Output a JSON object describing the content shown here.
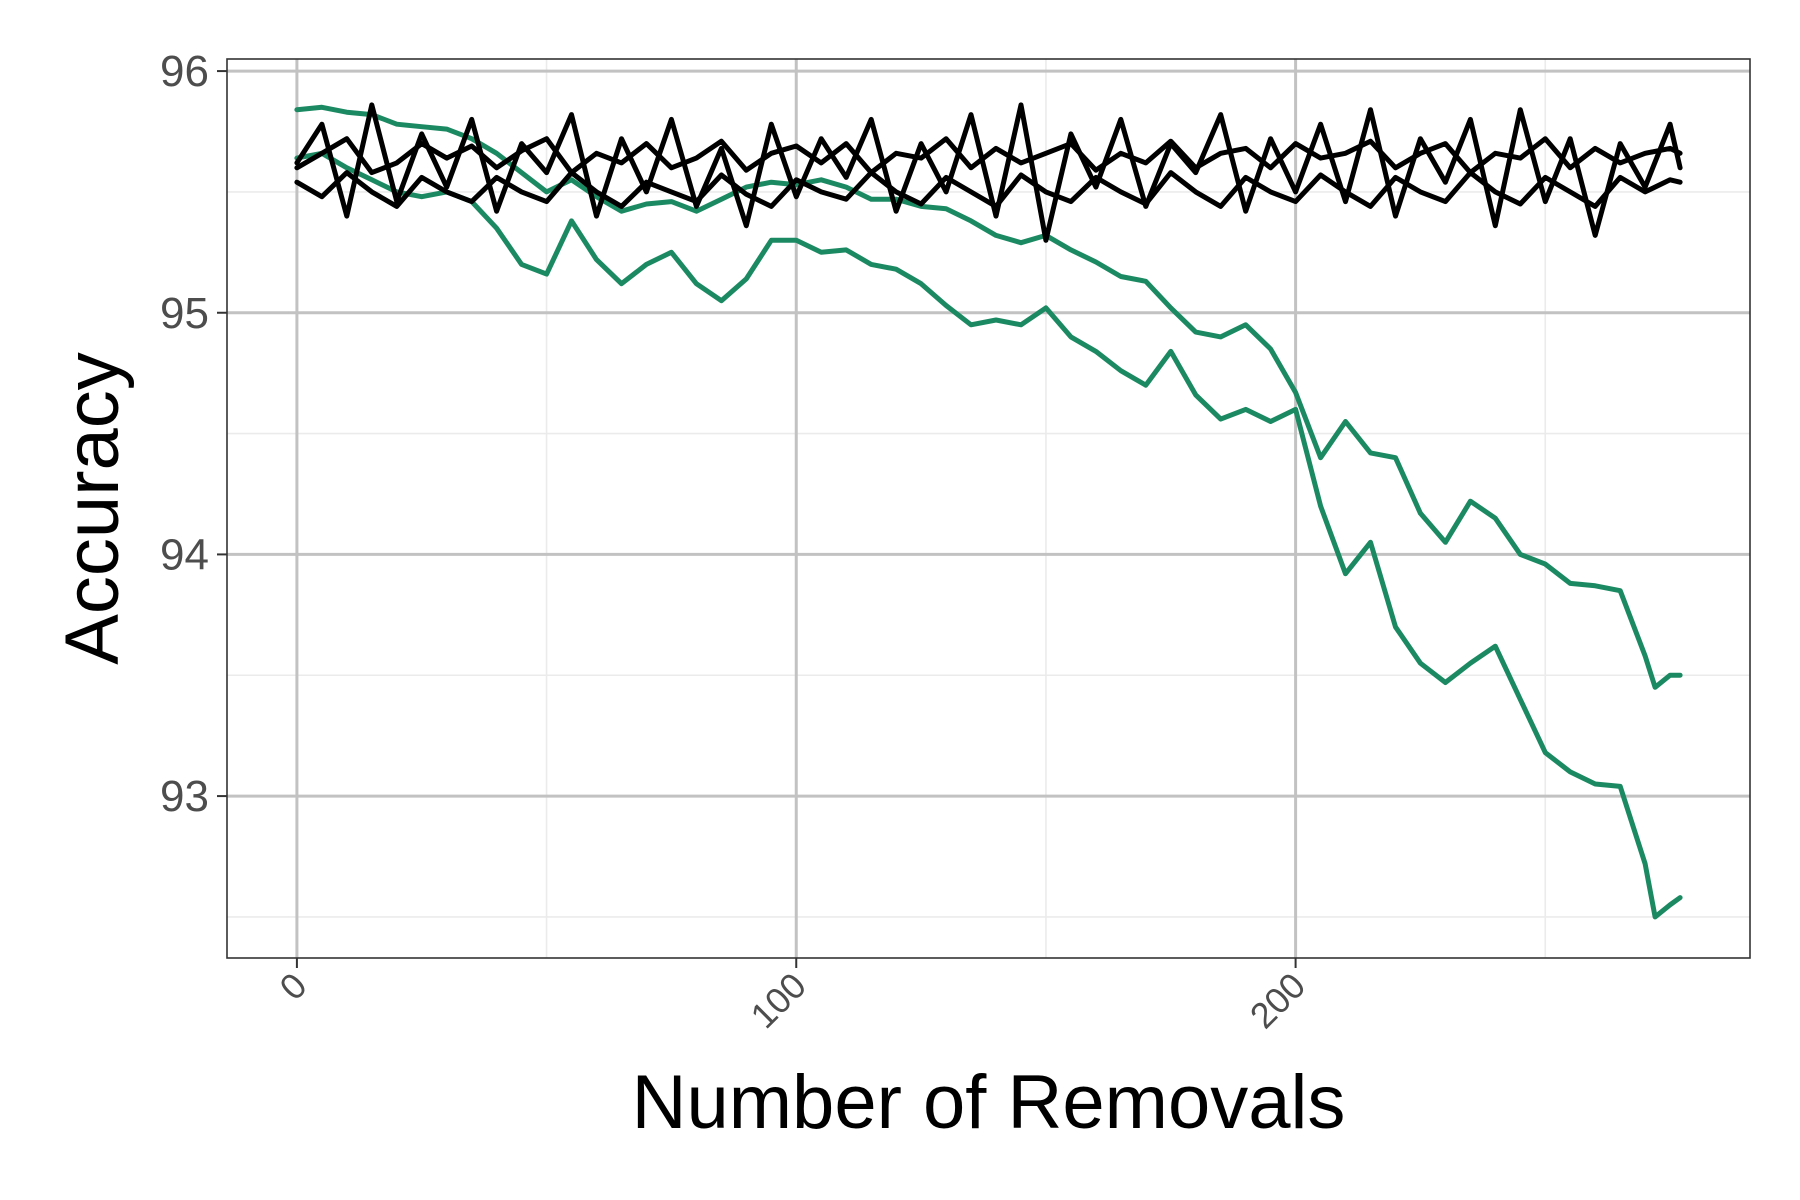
{
  "chart_data": {
    "type": "line",
    "xlabel": "Number of Removals",
    "ylabel": "Accuracy",
    "xlim": [
      -14,
      291
    ],
    "ylim": [
      92.33,
      96.05
    ],
    "x_ticks": [
      0,
      100,
      200
    ],
    "y_ticks": [
      93,
      94,
      95,
      96
    ],
    "grid": true,
    "legend": "none",
    "colors": {
      "green": "#1b8a63",
      "black": "#000000",
      "grid_major": "#c2c2c2",
      "grid_minor": "#ebebeb"
    },
    "series": [
      {
        "color": "#1b8a63",
        "x": [
          0,
          5,
          10,
          15,
          20,
          25,
          30,
          35,
          40,
          45,
          50,
          55,
          60,
          65,
          70,
          75,
          80,
          85,
          90,
          95,
          100,
          105,
          110,
          115,
          120,
          125,
          130,
          135,
          140,
          145,
          150,
          155,
          160,
          165,
          170,
          175,
          180,
          185,
          190,
          195,
          200,
          205,
          210,
          215,
          220,
          225,
          230,
          235,
          240,
          245,
          250,
          255,
          260,
          265,
          270,
          272,
          275,
          277
        ],
        "y": [
          95.84,
          95.85,
          95.83,
          95.82,
          95.78,
          95.77,
          95.76,
          95.72,
          95.66,
          95.58,
          95.5,
          95.55,
          95.48,
          95.42,
          95.45,
          95.46,
          95.42,
          95.47,
          95.52,
          95.54,
          95.53,
          95.55,
          95.52,
          95.47,
          95.47,
          95.44,
          95.43,
          95.38,
          95.32,
          95.29,
          95.32,
          95.26,
          95.21,
          95.15,
          95.13,
          95.02,
          94.92,
          94.9,
          94.95,
          94.85,
          94.67,
          94.4,
          94.55,
          94.42,
          94.4,
          94.17,
          94.05,
          94.22,
          94.15,
          94.0,
          93.96,
          93.88,
          93.87,
          93.85,
          93.58,
          93.45,
          93.5,
          93.5
        ]
      },
      {
        "color": "#1b8a63",
        "x": [
          0,
          5,
          10,
          15,
          20,
          25,
          30,
          35,
          40,
          45,
          50,
          55,
          60,
          65,
          70,
          75,
          80,
          85,
          90,
          95,
          100,
          105,
          110,
          115,
          120,
          125,
          130,
          135,
          140,
          145,
          150,
          155,
          160,
          165,
          170,
          175,
          180,
          185,
          190,
          195,
          200,
          205,
          210,
          215,
          220,
          225,
          230,
          235,
          240,
          245,
          250,
          255,
          260,
          265,
          270,
          272,
          275,
          277
        ],
        "y": [
          95.64,
          95.66,
          95.6,
          95.55,
          95.5,
          95.48,
          95.5,
          95.46,
          95.35,
          95.2,
          95.16,
          95.38,
          95.22,
          95.12,
          95.2,
          95.25,
          95.12,
          95.05,
          95.14,
          95.3,
          95.3,
          95.25,
          95.26,
          95.2,
          95.18,
          95.12,
          95.03,
          94.95,
          94.97,
          94.95,
          95.02,
          94.9,
          94.84,
          94.76,
          94.7,
          94.84,
          94.66,
          94.56,
          94.6,
          94.55,
          94.6,
          94.2,
          93.92,
          94.05,
          93.7,
          93.55,
          93.47,
          93.55,
          93.62,
          93.4,
          93.18,
          93.1,
          93.05,
          93.04,
          92.72,
          92.5,
          92.55,
          92.58
        ]
      },
      {
        "color": "#000000",
        "x": [
          0,
          5,
          10,
          15,
          20,
          25,
          30,
          35,
          40,
          45,
          50,
          55,
          60,
          65,
          70,
          75,
          80,
          85,
          90,
          95,
          100,
          105,
          110,
          115,
          120,
          125,
          130,
          135,
          140,
          145,
          150,
          155,
          160,
          165,
          170,
          175,
          180,
          185,
          190,
          195,
          200,
          205,
          210,
          215,
          220,
          225,
          230,
          235,
          240,
          245,
          250,
          255,
          260,
          265,
          270,
          275,
          277
        ],
        "y": [
          95.6,
          95.66,
          95.72,
          95.58,
          95.62,
          95.7,
          95.64,
          95.69,
          95.6,
          95.67,
          95.72,
          95.58,
          95.66,
          95.62,
          95.7,
          95.6,
          95.64,
          95.71,
          95.59,
          95.66,
          95.69,
          95.62,
          95.7,
          95.58,
          95.66,
          95.64,
          95.72,
          95.6,
          95.68,
          95.62,
          95.66,
          95.7,
          95.59,
          95.66,
          95.62,
          95.71,
          95.6,
          95.66,
          95.68,
          95.6,
          95.7,
          95.64,
          95.66,
          95.71,
          95.6,
          95.66,
          95.7,
          95.58,
          95.66,
          95.64,
          95.72,
          95.6,
          95.68,
          95.62,
          95.66,
          95.68,
          95.66
        ]
      },
      {
        "color": "#000000",
        "x": [
          0,
          5,
          10,
          15,
          20,
          25,
          30,
          35,
          40,
          45,
          50,
          55,
          60,
          65,
          70,
          75,
          80,
          85,
          90,
          95,
          100,
          105,
          110,
          115,
          120,
          125,
          130,
          135,
          140,
          145,
          150,
          155,
          160,
          165,
          170,
          175,
          180,
          185,
          190,
          195,
          200,
          205,
          210,
          215,
          220,
          225,
          230,
          235,
          240,
          245,
          250,
          255,
          260,
          265,
          270,
          275,
          277
        ],
        "y": [
          95.54,
          95.48,
          95.58,
          95.5,
          95.44,
          95.56,
          95.5,
          95.46,
          95.56,
          95.5,
          95.46,
          95.58,
          95.5,
          95.44,
          95.54,
          95.5,
          95.46,
          95.57,
          95.49,
          95.44,
          95.55,
          95.5,
          95.47,
          95.58,
          95.5,
          95.45,
          95.56,
          95.5,
          95.44,
          95.57,
          95.5,
          95.46,
          95.56,
          95.5,
          95.45,
          95.58,
          95.5,
          95.44,
          95.56,
          95.5,
          95.46,
          95.57,
          95.5,
          95.44,
          95.56,
          95.5,
          95.46,
          95.58,
          95.5,
          95.45,
          95.56,
          95.5,
          95.44,
          95.56,
          95.5,
          95.55,
          95.54
        ]
      },
      {
        "color": "#000000",
        "x": [
          0,
          5,
          10,
          15,
          20,
          25,
          30,
          35,
          40,
          45,
          50,
          55,
          60,
          65,
          70,
          75,
          80,
          85,
          90,
          95,
          100,
          105,
          110,
          115,
          120,
          125,
          130,
          135,
          140,
          145,
          150,
          155,
          160,
          165,
          170,
          175,
          180,
          185,
          190,
          195,
          200,
          205,
          210,
          215,
          220,
          225,
          230,
          235,
          240,
          245,
          250,
          255,
          260,
          265,
          270,
          275,
          277
        ],
        "y": [
          95.62,
          95.78,
          95.4,
          95.86,
          95.46,
          95.74,
          95.52,
          95.8,
          95.42,
          95.7,
          95.58,
          95.82,
          95.4,
          95.72,
          95.5,
          95.8,
          95.44,
          95.68,
          95.36,
          95.78,
          95.48,
          95.72,
          95.56,
          95.8,
          95.42,
          95.7,
          95.5,
          95.82,
          95.4,
          95.86,
          95.3,
          95.74,
          95.52,
          95.8,
          95.44,
          95.7,
          95.58,
          95.82,
          95.42,
          95.72,
          95.5,
          95.78,
          95.46,
          95.84,
          95.4,
          95.72,
          95.54,
          95.8,
          95.36,
          95.84,
          95.46,
          95.72,
          95.32,
          95.7,
          95.52,
          95.78,
          95.6
        ]
      }
    ]
  }
}
